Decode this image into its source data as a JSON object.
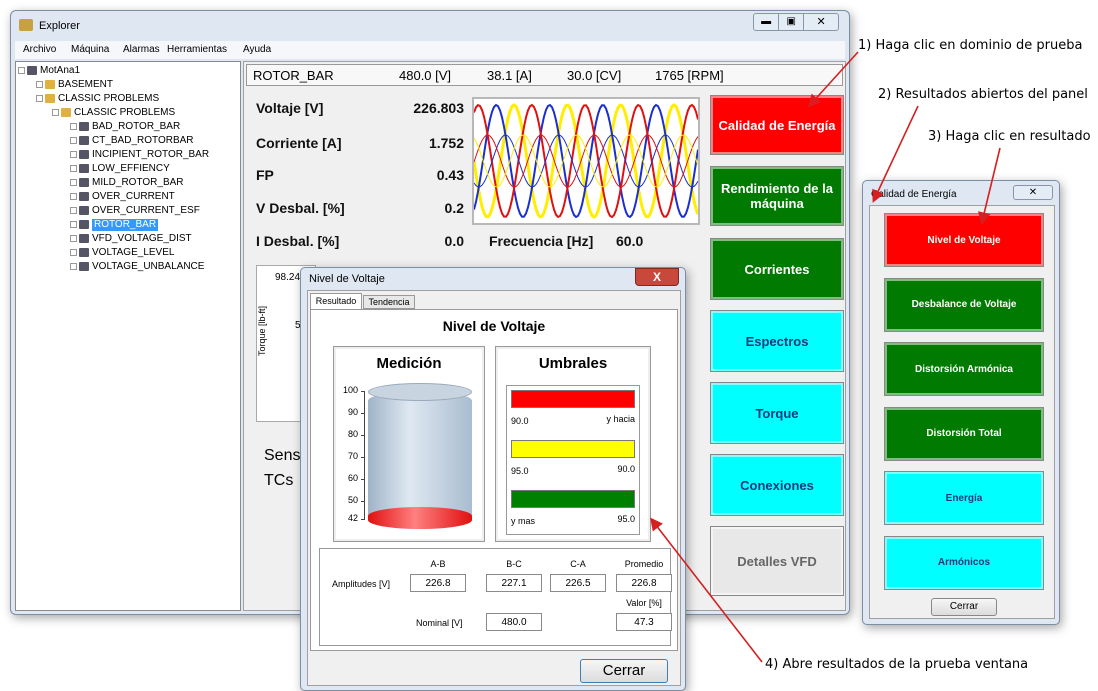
{
  "window": {
    "title": "Explorer"
  },
  "menu": [
    "Archivo",
    "Máquina",
    "Alarmas",
    "Herramientas",
    "Ayuda"
  ],
  "tree": {
    "root": "MotAna1",
    "folders": [
      "BASEMENT",
      "CLASSIC PROBLEMS"
    ],
    "subfolder": "CLASSIC PROBLEMS",
    "tests": [
      "BAD_ROTOR_BAR",
      "CT_BAD_ROTORBAR",
      "INCIPIENT_ROTOR_BAR",
      "LOW_EFFIENCY",
      "MILD_ROTOR_BAR",
      "OVER_CURRENT",
      "OVER_CURRENT_ESF",
      "ROTOR_BAR",
      "VFD_VOLTAGE_DIST",
      "VOLTAGE_LEVEL",
      "VOLTAGE_UNBALANCE"
    ]
  },
  "header": {
    "machine": "ROTOR_BAR",
    "voltage": "480.0 [V]",
    "current": "38.1 [A]",
    "power": "30.0 [CV]",
    "speed": "1765 [RPM]"
  },
  "measurements": [
    {
      "label": "Voltaje [V]",
      "value": "226.803"
    },
    {
      "label": "Corriente [A]",
      "value": "1.752"
    },
    {
      "label": "FP",
      "value": "0.43"
    },
    {
      "label": "V Desbal. [%]",
      "value": "0.2"
    },
    {
      "label": "I Desbal. [%]",
      "value": "0.0"
    }
  ],
  "frequency": {
    "label": "Frecuencia [Hz]",
    "value": "60.0"
  },
  "buttons": [
    {
      "label": "Calidad de Energía",
      "color": "#ff0000"
    },
    {
      "label": "Rendimiento de la máquina",
      "color": "#007a00"
    },
    {
      "label": "Corrientes",
      "color": "#007a00"
    },
    {
      "label": "Espectros",
      "color": "#00ffff"
    },
    {
      "label": "Torque",
      "color": "#00ffff"
    },
    {
      "label": "Conexiones",
      "color": "#00ffff"
    },
    {
      "label": "Detalles VFD",
      "color": "#e8e8e8"
    }
  ],
  "background": {
    "value": "98.24",
    "axis": "Torque [lb-ft]",
    "tick": "5",
    "sensors": "Sens",
    "cts": "TCs"
  },
  "voltage_dialog": {
    "title": "Nivel de Voltaje",
    "tabs": [
      "Resultado",
      "Tendencia"
    ],
    "heading": "Nivel de Voltaje",
    "measurement_title": "Medición",
    "thresholds_title": "Umbrales",
    "scale": [
      "100",
      "90",
      "80",
      "70",
      "60",
      "50",
      "42"
    ],
    "thresholds": [
      {
        "color": "#ff0000",
        "low": "90.0",
        "high": "y hacia"
      },
      {
        "color": "#ffff00",
        "low": "95.0",
        "high": "90.0"
      },
      {
        "color": "#008000",
        "low": "y mas",
        "high": "95.0"
      }
    ],
    "table": {
      "columns": [
        "A-B",
        "B-C",
        "C-A",
        "Promedio"
      ],
      "row_label": "Amplitudes [V]",
      "amplitudes": [
        "226.8",
        "227.1",
        "226.5",
        "226.8"
      ],
      "value_label": "Valor [%]",
      "nominal_label": "Nominal [V]",
      "nominal": "480.0",
      "value": "47.3"
    },
    "close": "Cerrar"
  },
  "quality_dialog": {
    "title": "Calidad de Energía",
    "buttons": [
      {
        "label": "Nivel de Voltaje",
        "color": "#ff0000"
      },
      {
        "label": "Desbalance de Voltaje",
        "color": "#007a00"
      },
      {
        "label": "Distorsión Armónica",
        "color": "#007a00"
      },
      {
        "label": "Distorsión Total",
        "color": "#007a00"
      },
      {
        "label": "Energía",
        "color": "#00ffff"
      },
      {
        "label": "Armónicos",
        "color": "#00ffff"
      }
    ],
    "close": "Cerrar"
  },
  "annotations": [
    "1) Haga clic en dominio de prueba",
    "2) Resultados abiertos del panel",
    "3) Haga clic en resultado",
    "4) Abre resultados de la prueba ventana"
  ]
}
